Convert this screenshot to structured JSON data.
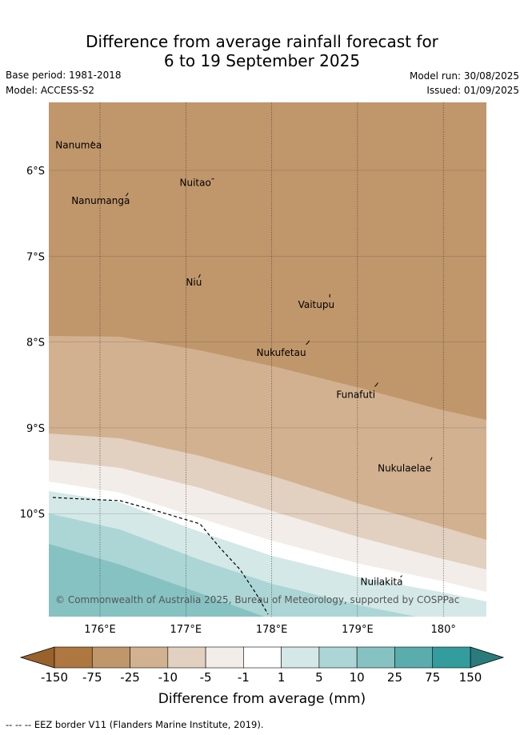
{
  "header": {
    "title_line1": "Difference from average rainfall forecast for",
    "title_line2": "6 to 19 September 2025",
    "base_period": "Base period: 1981-2018",
    "model": "Model: ACCESS-S2",
    "model_run": "Model run: 30/08/2025",
    "issued": "Issued: 01/09/2025"
  },
  "map": {
    "copyright": "© Commonwealth of Australia 2025, Bureau of Meteorology, supported by COSPPac",
    "lon_ticks": [
      "176°E",
      "177°E",
      "178°E",
      "179°E",
      "180°"
    ],
    "lat_ticks": [
      "6°S",
      "7°S",
      "8°S",
      "9°S",
      "10°S"
    ],
    "islands": [
      {
        "name": "Nanumea",
        "lon": 175.9,
        "lat": -5.69
      },
      {
        "name": "Nuitao",
        "lon": 177.3,
        "lat": -6.1
      },
      {
        "name": "Nanumanga",
        "lon": 176.3,
        "lat": -6.3
      },
      {
        "name": "Niu",
        "lon": 177.15,
        "lat": -7.25
      },
      {
        "name": "Vaitupu",
        "lon": 178.68,
        "lat": -7.48
      },
      {
        "name": "Nukufetau",
        "lon": 178.4,
        "lat": -8.03
      },
      {
        "name": "Funafuti",
        "lon": 179.2,
        "lat": -8.52
      },
      {
        "name": "Nukulaelae",
        "lon": 179.85,
        "lat": -9.38
      },
      {
        "name": "Nuilakita",
        "lon": 179.5,
        "lat": -10.74
      }
    ]
  },
  "colorbar": {
    "labels": [
      "-150",
      "-75",
      "-25",
      "-10",
      "-5",
      "-1",
      "1",
      "5",
      "10",
      "25",
      "75",
      "150"
    ],
    "colors": [
      "#ad773f",
      "#c0966b",
      "#d2b190",
      "#e2d0c0",
      "#f2ede8",
      "#ffffff",
      "#d4e8e8",
      "#acd6d5",
      "#86c2c2",
      "#5badad",
      "#339c9c"
    ],
    "end_low_color": "#99622c",
    "end_high_color": "#2a7c7c",
    "title": "Difference from average (mm)"
  },
  "footer": {
    "eez_note": "--  --  -- EEZ border V11 (Flanders Marine Institute, 2019)."
  }
}
